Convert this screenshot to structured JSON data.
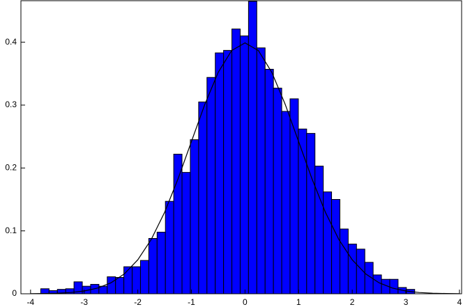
{
  "chart_data": {
    "type": "histogram",
    "bins": [
      -3.81,
      -3.655,
      -3.5,
      -3.345,
      -3.19,
      -3.035,
      -2.88,
      -2.725,
      -2.57,
      -2.415,
      -2.26,
      -2.105,
      -1.95,
      -1.795,
      -1.64,
      -1.485,
      -1.33,
      -1.175,
      -1.02,
      -0.865,
      -0.71,
      -0.555,
      -0.4,
      -0.245,
      -0.09,
      0.065,
      0.22,
      0.375,
      0.53,
      0.685,
      0.84,
      0.995,
      1.15,
      1.305,
      1.46,
      1.615,
      1.77,
      1.925,
      2.08,
      2.235,
      2.39,
      2.545,
      2.7,
      2.855,
      3.01,
      3.165
    ],
    "values": [
      0.008,
      0.005,
      0.007,
      0.008,
      0.019,
      0.012,
      0.015,
      0.012,
      0.027,
      0.026,
      0.043,
      0.043,
      0.053,
      0.088,
      0.098,
      0.147,
      0.222,
      0.193,
      0.245,
      0.305,
      0.344,
      0.383,
      0.387,
      0.421,
      0.41,
      0.465,
      0.391,
      0.357,
      0.327,
      0.29,
      0.31,
      0.262,
      0.255,
      0.203,
      0.162,
      0.15,
      0.103,
      0.079,
      0.071,
      0.05,
      0.03,
      0.023,
      0.023,
      0.01,
      0.007
    ],
    "color": "#0000ff",
    "curve": {
      "color": "#000000",
      "x": [
        -4,
        -3.75,
        -3.5,
        -3.25,
        -3,
        -2.75,
        -2.5,
        -2.25,
        -2,
        -1.75,
        -1.5,
        -1.25,
        -1,
        -0.75,
        -0.5,
        -0.25,
        0,
        0.25,
        0.5,
        0.75,
        1,
        1.25,
        1.5,
        1.75,
        2,
        2.25,
        2.5,
        2.75,
        3,
        3.25,
        3.5,
        3.75,
        4
      ],
      "y": [
        0.0001,
        0.0004,
        0.0009,
        0.002,
        0.0044,
        0.0091,
        0.0175,
        0.0317,
        0.054,
        0.0863,
        0.1295,
        0.1826,
        0.242,
        0.3011,
        0.3521,
        0.3867,
        0.3989,
        0.3867,
        0.3521,
        0.3011,
        0.242,
        0.1826,
        0.1295,
        0.0863,
        0.054,
        0.0317,
        0.0175,
        0.0091,
        0.0044,
        0.002,
        0.0009,
        0.0004,
        0.0001
      ]
    },
    "xlim": [
      -4.18,
      4.04
    ],
    "ylim": [
      0,
      0.466
    ],
    "xticks": [
      -4,
      -3,
      -2,
      -1,
      0,
      1,
      2,
      3,
      4
    ],
    "yticks": [
      0,
      0.1,
      0.2,
      0.3,
      0.4
    ]
  }
}
